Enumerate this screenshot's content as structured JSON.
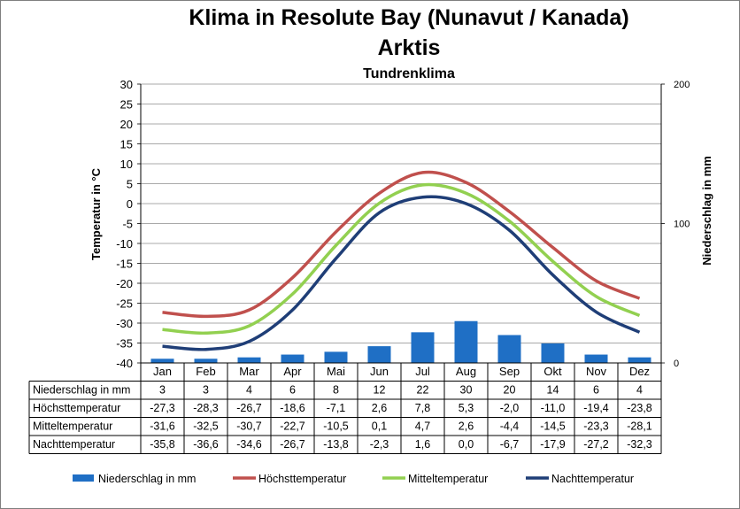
{
  "chart_data": {
    "type": "bar+line",
    "title": "Klima in Resolute Bay (Nunavut / Kanada)",
    "title2": "Arktis",
    "subtitle": "Tundrenklima",
    "ylabel_left": "Temperatur in °C",
    "ylabel_right": "Niederschlag in mm",
    "ylim_left": [
      -40,
      30
    ],
    "ylim_right": [
      0,
      200
    ],
    "yticks_left": [
      "30",
      "25",
      "20",
      "15",
      "10",
      "5",
      "0",
      "-5",
      "-10",
      "-15",
      "-20",
      "-25",
      "-30",
      "-35",
      "-40"
    ],
    "yticks_right": [
      "200",
      "100",
      "0"
    ],
    "categories": [
      "Jan",
      "Feb",
      "Mar",
      "Apr",
      "Mai",
      "Jun",
      "Jul",
      "Aug",
      "Sep",
      "Okt",
      "Nov",
      "Dez"
    ],
    "grid": true,
    "legend_position": "bottom",
    "series": [
      {
        "name": "Niederschlag in mm",
        "kind": "bar",
        "axis": "right",
        "color": "#1f6fc5",
        "values": [
          3,
          3,
          4,
          6,
          8,
          12,
          22,
          30,
          20,
          14,
          6,
          4
        ],
        "labels": [
          "3",
          "3",
          "4",
          "6",
          "8",
          "12",
          "22",
          "30",
          "20",
          "14",
          "6",
          "4"
        ]
      },
      {
        "name": "Höchsttemperatur",
        "kind": "line",
        "axis": "left",
        "color": "#c0504d",
        "values": [
          -27.3,
          -28.3,
          -26.7,
          -18.6,
          -7.1,
          2.6,
          7.8,
          5.3,
          -2.0,
          -11.0,
          -19.4,
          -23.8
        ],
        "labels": [
          "-27,3",
          "-28,3",
          "-26,7",
          "-18,6",
          "-7,1",
          "2,6",
          "7,8",
          "5,3",
          "-2,0",
          "-11,0",
          "-19,4",
          "-23,8"
        ]
      },
      {
        "name": "Mitteltemperatur",
        "kind": "line",
        "axis": "left",
        "color": "#92d050",
        "values": [
          -31.6,
          -32.5,
          -30.7,
          -22.7,
          -10.5,
          0.1,
          4.7,
          2.6,
          -4.4,
          -14.5,
          -23.3,
          -28.1
        ],
        "labels": [
          "-31,6",
          "-32,5",
          "-30,7",
          "-22,7",
          "-10,5",
          "0,1",
          "4,7",
          "2,6",
          "-4,4",
          "-14,5",
          "-23,3",
          "-28,1"
        ]
      },
      {
        "name": "Nachttemperatur",
        "kind": "line",
        "axis": "left",
        "color": "#1f3e77",
        "values": [
          -35.8,
          -36.6,
          -34.6,
          -26.7,
          -13.8,
          -2.3,
          1.6,
          0.0,
          -6.7,
          -17.9,
          -27.2,
          -32.3
        ],
        "labels": [
          "-35,8",
          "-36,6",
          "-34,6",
          "-26,7",
          "-13,8",
          "-2,3",
          "1,6",
          "0,0",
          "-6,7",
          "-17,9",
          "-27,2",
          "-32,3"
        ]
      }
    ]
  }
}
